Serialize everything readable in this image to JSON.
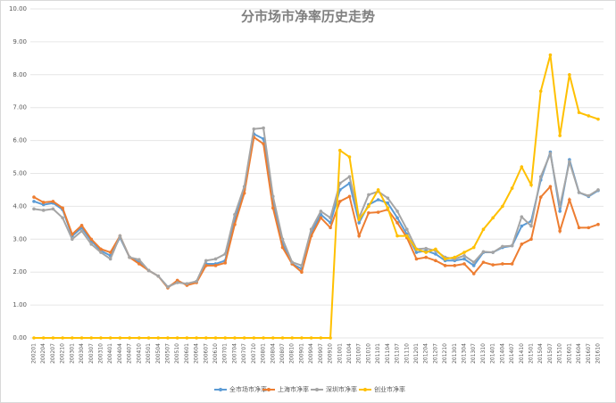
{
  "chart_data": {
    "type": "line",
    "title": "分市场市净率历史走势",
    "categories": [
      "200201",
      "200204",
      "200207",
      "200210",
      "200301",
      "200304",
      "200307",
      "200310",
      "200401",
      "200404",
      "200407",
      "200410",
      "200501",
      "200504",
      "200507",
      "200510",
      "200601",
      "200604",
      "200607",
      "200610",
      "200701",
      "200704",
      "200707",
      "200710",
      "200801",
      "200804",
      "200807",
      "200810",
      "200901",
      "200904",
      "200907",
      "200910",
      "201001",
      "201004",
      "201007",
      "201010",
      "201101",
      "201104",
      "201107",
      "201110",
      "201201",
      "201204",
      "201207",
      "201210",
      "201301",
      "201304",
      "201307",
      "201310",
      "201401",
      "201404",
      "201407",
      "201410",
      "201501",
      "201504",
      "201507",
      "201510",
      "201601",
      "201604",
      "201607",
      "201610"
    ],
    "series": [
      {
        "name": "全市场市净率",
        "color": "#5b9bd5",
        "values": [
          4.15,
          4.05,
          4.1,
          3.9,
          3.1,
          3.35,
          2.95,
          2.65,
          2.5,
          3.05,
          2.45,
          2.3,
          2.05,
          1.88,
          1.55,
          1.72,
          1.62,
          1.7,
          2.25,
          2.25,
          2.35,
          3.6,
          4.5,
          6.2,
          6.05,
          4.1,
          2.85,
          2.25,
          2.1,
          3.2,
          3.75,
          3.5,
          4.5,
          4.7,
          3.5,
          4.05,
          4.2,
          4.1,
          3.65,
          3.15,
          2.6,
          2.65,
          2.55,
          2.35,
          2.35,
          2.4,
          2.2,
          2.6,
          2.6,
          2.75,
          2.8,
          3.4,
          3.55,
          4.8,
          5.65,
          3.85,
          5.42,
          4.42,
          4.3,
          4.48
        ]
      },
      {
        "name": "上海市净率",
        "color": "#ed7d31",
        "values": [
          4.28,
          4.12,
          4.15,
          3.95,
          3.15,
          3.42,
          3.0,
          2.7,
          2.6,
          3.1,
          2.45,
          2.25,
          2.05,
          1.88,
          1.52,
          1.75,
          1.6,
          1.68,
          2.2,
          2.2,
          2.28,
          3.45,
          4.4,
          6.1,
          5.9,
          3.95,
          2.75,
          2.25,
          2.0,
          3.1,
          3.65,
          3.35,
          4.15,
          4.3,
          3.1,
          3.8,
          3.82,
          3.9,
          3.5,
          3.05,
          2.4,
          2.45,
          2.35,
          2.2,
          2.2,
          2.25,
          1.95,
          2.3,
          2.22,
          2.25,
          2.25,
          2.85,
          3.0,
          4.28,
          4.6,
          3.25,
          4.2,
          3.35,
          3.35,
          3.45
        ]
      },
      {
        "name": "深圳市净率",
        "color": "#a5a5a5",
        "values": [
          3.92,
          3.88,
          3.92,
          3.65,
          3.0,
          3.25,
          2.85,
          2.6,
          2.4,
          3.1,
          2.45,
          2.38,
          2.05,
          1.88,
          1.55,
          1.68,
          1.65,
          1.72,
          2.35,
          2.4,
          2.55,
          3.75,
          4.6,
          6.35,
          6.38,
          4.3,
          3.0,
          2.3,
          2.2,
          3.3,
          3.85,
          3.65,
          4.7,
          4.9,
          3.65,
          4.35,
          4.45,
          4.25,
          3.85,
          3.3,
          2.7,
          2.72,
          2.65,
          2.45,
          2.4,
          2.5,
          2.3,
          2.62,
          2.6,
          2.78,
          2.8,
          3.68,
          3.4,
          4.9,
          5.6,
          4.0,
          5.35,
          4.42,
          4.32,
          4.5
        ]
      },
      {
        "name": "创业市净率",
        "color": "#ffc000",
        "values": [
          0,
          0,
          0,
          0,
          0,
          0,
          0,
          0,
          0,
          0,
          0,
          0,
          0,
          0,
          0,
          0,
          0,
          0,
          0,
          0,
          0,
          0,
          0,
          0,
          0,
          0,
          0,
          0,
          0,
          0,
          0,
          0,
          5.7,
          5.5,
          3.6,
          4.0,
          4.5,
          3.95,
          3.1,
          3.1,
          2.7,
          2.6,
          2.7,
          2.4,
          2.45,
          2.6,
          2.75,
          3.3,
          3.65,
          4.0,
          4.55,
          5.2,
          4.65,
          7.5,
          8.6,
          6.15,
          8.0,
          6.85,
          6.75,
          6.65
        ]
      }
    ],
    "ylim": [
      0,
      10
    ],
    "yticks": [
      {
        "value": 0,
        "label": "0.00"
      },
      {
        "value": 1,
        "label": "1.00"
      },
      {
        "value": 2,
        "label": "2.00"
      },
      {
        "value": 3,
        "label": "3.00"
      },
      {
        "value": 4,
        "label": "4.00"
      },
      {
        "value": 5,
        "label": "5.00"
      },
      {
        "value": 6,
        "label": "6.00"
      },
      {
        "value": 7,
        "label": "7.00"
      },
      {
        "value": 8,
        "label": "8.00"
      },
      {
        "value": 9,
        "label": "9.00"
      },
      {
        "value": 10,
        "label": "10.00"
      }
    ],
    "grid": true,
    "legend": "bottom"
  }
}
